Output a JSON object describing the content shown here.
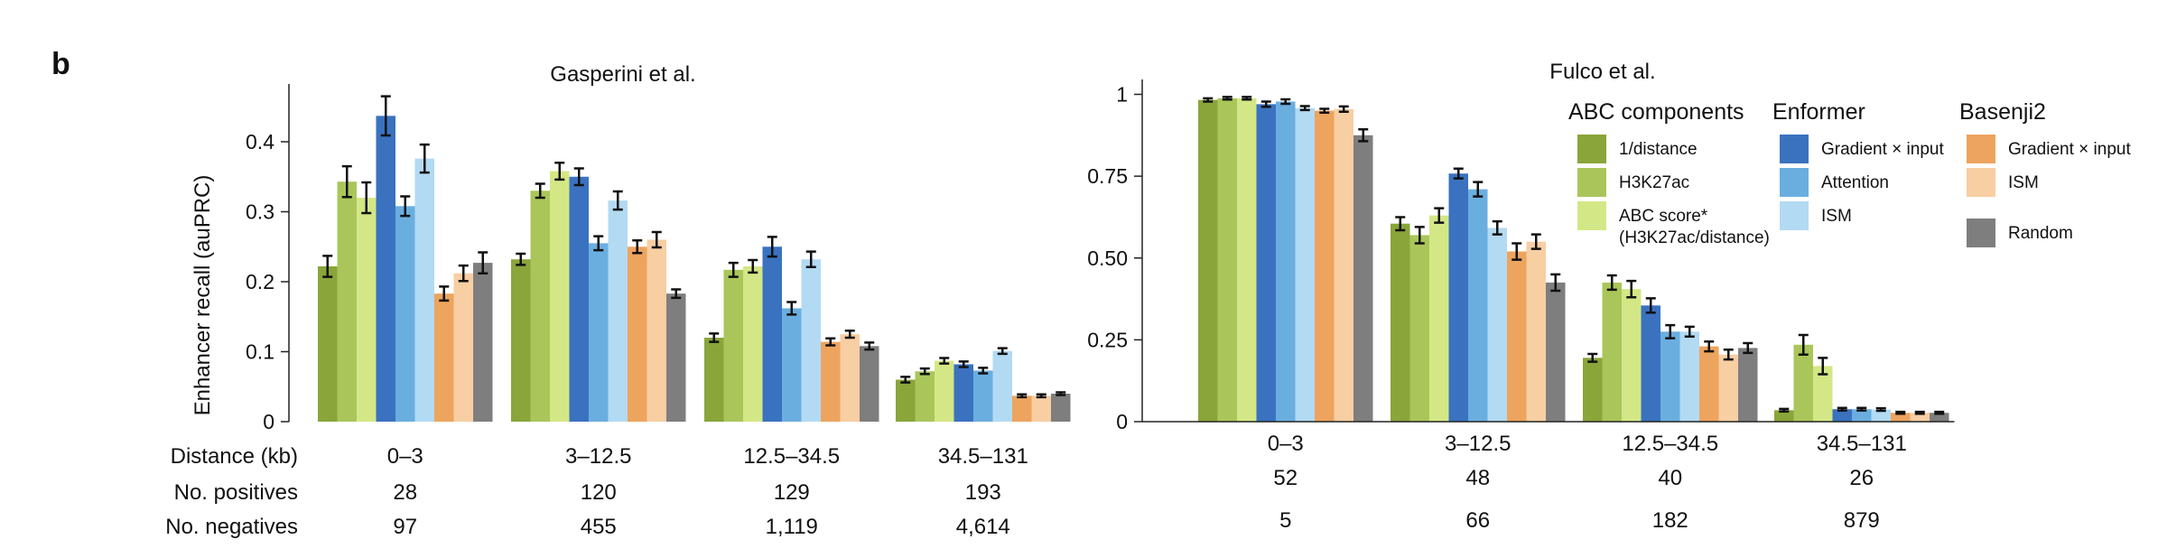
{
  "panel_label": "b",
  "ylabel": "Enhancer recall (auPRC)",
  "row_labels": {
    "distance": "Distance (kb)",
    "positives": "No. positives",
    "negatives": "No. negatives"
  },
  "legend": {
    "groups": [
      {
        "title": "ABC components",
        "items": [
          {
            "label": "1/distance",
            "color": "#8aa53a"
          },
          {
            "label": "H3K27ac",
            "color": "#aac65a"
          },
          {
            "label": "ABC score*",
            "label2": "(H3K27ac/distance)",
            "color": "#d4e786"
          }
        ]
      },
      {
        "title": "Enformer",
        "items": [
          {
            "label": "Gradient × input",
            "color": "#3a72c0"
          },
          {
            "label": "Attention",
            "color": "#6aaee0"
          },
          {
            "label": "ISM",
            "color": "#b3daf3"
          }
        ]
      },
      {
        "title": "Basenji2",
        "items": [
          {
            "label": "Gradient × input",
            "color": "#eda45e"
          },
          {
            "label": "ISM",
            "color": "#f8ceA3"
          },
          {
            "label": "Random",
            "color": "#7e7e7e"
          }
        ]
      }
    ]
  },
  "chart_data": [
    {
      "type": "bar",
      "title": "Gasperini et al.",
      "ylabel": "Enhancer recall (auPRC)",
      "ylim": [
        0,
        0.48
      ],
      "yticks": [
        0,
        0.1,
        0.2,
        0.3,
        0.4
      ],
      "ytick_labels": [
        "0",
        "0.1",
        "0.2",
        "0.3",
        "0.4"
      ],
      "categories": [
        "0–3",
        "3–12.5",
        "12.5–34.5",
        "34.5–131"
      ],
      "positives": [
        "28",
        "120",
        "129",
        "193"
      ],
      "negatives": [
        "97",
        "455",
        "1,119",
        "4,614"
      ],
      "series": [
        {
          "name": "1/distance",
          "color": "#8aa53a",
          "values": [
            0.222,
            0.232,
            0.12,
            0.06
          ],
          "errors": [
            0.015,
            0.008,
            0.006,
            0.004
          ]
        },
        {
          "name": "H3K27ac",
          "color": "#aac65a",
          "values": [
            0.343,
            0.33,
            0.217,
            0.072
          ],
          "errors": [
            0.022,
            0.01,
            0.01,
            0.004
          ]
        },
        {
          "name": "ABC score*",
          "color": "#d4e786",
          "values": [
            0.32,
            0.358,
            0.222,
            0.087
          ],
          "errors": [
            0.022,
            0.012,
            0.009,
            0.004
          ]
        },
        {
          "name": "Enformer Gradient × input",
          "color": "#3a72c0",
          "values": [
            0.437,
            0.35,
            0.25,
            0.082
          ],
          "errors": [
            0.028,
            0.012,
            0.014,
            0.004
          ]
        },
        {
          "name": "Enformer Attention",
          "color": "#6aaee0",
          "values": [
            0.308,
            0.255,
            0.162,
            0.073
          ],
          "errors": [
            0.014,
            0.01,
            0.009,
            0.004
          ]
        },
        {
          "name": "Enformer ISM",
          "color": "#b3daf3",
          "values": [
            0.376,
            0.316,
            0.232,
            0.101
          ],
          "errors": [
            0.02,
            0.013,
            0.011,
            0.004
          ]
        },
        {
          "name": "Basenji2 Gradient × input",
          "color": "#eda45e",
          "values": [
            0.183,
            0.25,
            0.114,
            0.037
          ],
          "errors": [
            0.01,
            0.009,
            0.005,
            0.002
          ]
        },
        {
          "name": "Basenji2 ISM",
          "color": "#f8cea3",
          "values": [
            0.212,
            0.26,
            0.125,
            0.037
          ],
          "errors": [
            0.011,
            0.011,
            0.005,
            0.002
          ]
        },
        {
          "name": "Random",
          "color": "#7e7e7e",
          "values": [
            0.227,
            0.183,
            0.108,
            0.04
          ],
          "errors": [
            0.015,
            0.006,
            0.005,
            0.002
          ]
        }
      ]
    },
    {
      "type": "bar",
      "title": "Fulco et al.",
      "ylim": [
        0,
        1.04
      ],
      "yticks": [
        0,
        0.25,
        0.5,
        0.75,
        1
      ],
      "ytick_labels": [
        "0",
        "0.25",
        "0.50",
        "0.75",
        "1"
      ],
      "categories": [
        "0–3",
        "3–12.5",
        "12.5–34.5",
        "34.5–131"
      ],
      "positives": [
        "52",
        "48",
        "40",
        "26"
      ],
      "negatives": [
        "5",
        "66",
        "182",
        "879"
      ],
      "series": [
        {
          "name": "1/distance",
          "color": "#8aa53a",
          "values": [
            0.983,
            0.605,
            0.195,
            0.035
          ],
          "errors": [
            0.005,
            0.02,
            0.012,
            0.004
          ]
        },
        {
          "name": "H3K27ac",
          "color": "#aac65a",
          "values": [
            0.988,
            0.57,
            0.425,
            0.235
          ],
          "errors": [
            0.004,
            0.025,
            0.022,
            0.03
          ]
        },
        {
          "name": "ABC score*",
          "color": "#d4e786",
          "values": [
            0.988,
            0.63,
            0.405,
            0.17
          ],
          "errors": [
            0.004,
            0.022,
            0.025,
            0.025
          ]
        },
        {
          "name": "Enformer Gradient × input",
          "color": "#3a72c0",
          "values": [
            0.97,
            0.758,
            0.355,
            0.038
          ],
          "errors": [
            0.008,
            0.015,
            0.022,
            0.004
          ]
        },
        {
          "name": "Enformer Attention",
          "color": "#6aaee0",
          "values": [
            0.978,
            0.71,
            0.275,
            0.038
          ],
          "errors": [
            0.007,
            0.022,
            0.02,
            0.004
          ]
        },
        {
          "name": "Enformer ISM",
          "color": "#b3daf3",
          "values": [
            0.958,
            0.592,
            0.275,
            0.037
          ],
          "errors": [
            0.006,
            0.02,
            0.015,
            0.004
          ]
        },
        {
          "name": "Basenji2 Gradient × input",
          "color": "#eda45e",
          "values": [
            0.95,
            0.52,
            0.23,
            0.027
          ],
          "errors": [
            0.006,
            0.025,
            0.015,
            0.003
          ]
        },
        {
          "name": "Basenji2 ISM",
          "color": "#f8cea3",
          "values": [
            0.955,
            0.55,
            0.205,
            0.027
          ],
          "errors": [
            0.008,
            0.022,
            0.015,
            0.003
          ]
        },
        {
          "name": "Random",
          "color": "#7e7e7e",
          "values": [
            0.875,
            0.425,
            0.225,
            0.027
          ],
          "errors": [
            0.018,
            0.025,
            0.015,
            0.003
          ]
        }
      ]
    }
  ]
}
